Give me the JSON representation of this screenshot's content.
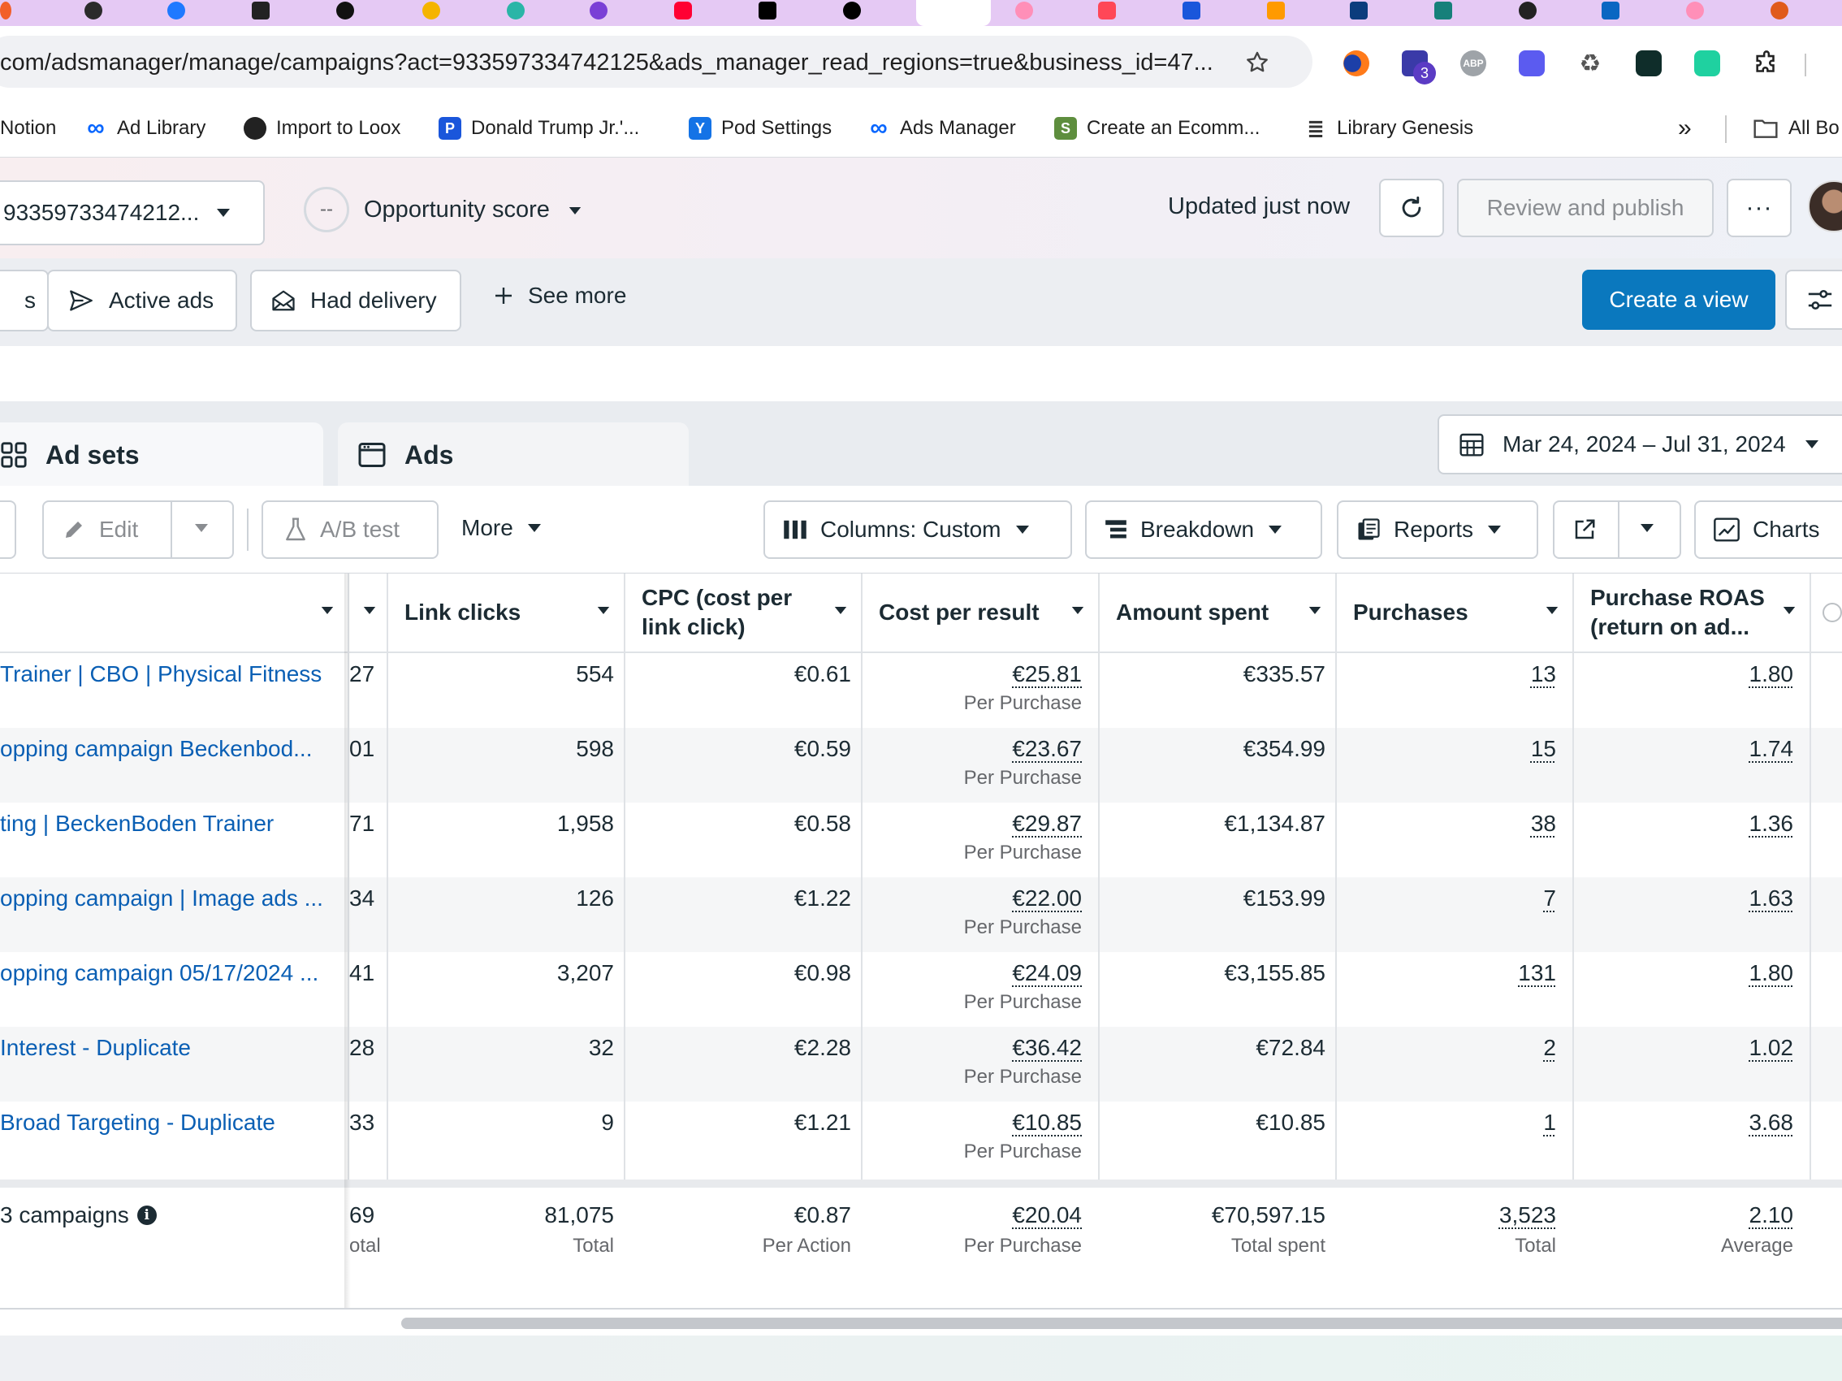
{
  "browser": {
    "url": "com/adsmanager/manage/campaigns?act=933597334742125&ads_manager_read_regions=true&business_id=47...",
    "bookmarks": [
      {
        "label": "Notion"
      },
      {
        "label": "Ad Library"
      },
      {
        "label": "Import to Loox"
      },
      {
        "label": "Donald Trump Jr.'..."
      },
      {
        "label": "Pod Settings"
      },
      {
        "label": "Ads Manager"
      },
      {
        "label": "Create an Ecomm..."
      },
      {
        "label": "Library Genesis"
      }
    ],
    "overflow_label": "»",
    "all_bookmarks_label": "All Bo",
    "extension_badge": "3",
    "abp_label": "ABP"
  },
  "header": {
    "account_id": "93359733474212...",
    "opportunity_score_value": "--",
    "opportunity_score_label": "Opportunity score",
    "updated_text": "Updated just now",
    "publish_label": "Review and publish",
    "more_label": "···"
  },
  "filters": {
    "partial_label": "s",
    "active_ads_label": "Active ads",
    "had_delivery_label": "Had delivery",
    "see_more_label": "See more",
    "create_view_label": "Create a view"
  },
  "level_tabs": {
    "adsets_label": "Ad sets",
    "ads_label": "Ads"
  },
  "date_range": "Mar 24, 2024 – Jul 31, 2024",
  "toolbar": {
    "edit_label": "Edit",
    "ab_test_label": "A/B test",
    "more_label": "More",
    "columns_label": "Columns: Custom",
    "breakdown_label": "Breakdown",
    "reports_label": "Reports",
    "charts_label": "Charts"
  },
  "table": {
    "headers": {
      "link_clicks": "Link clicks",
      "cpc_line1": "CPC (cost per",
      "cpc_line2": "link click)",
      "cost_per_result": "Cost per result",
      "amount_spent": "Amount spent",
      "purchases": "Purchases",
      "roas_line1": "Purchase ROAS",
      "roas_line2": "(return on ad..."
    },
    "rows": [
      {
        "name": "Trainer | CBO | Physical Fitness",
        "partial": "27",
        "link_clicks": "554",
        "cpc": "€0.61",
        "cost_per_result": "€25.81",
        "result_type": "Per Purchase",
        "amount_spent": "€335.57",
        "purchases": "13",
        "roas": "1.80"
      },
      {
        "name": "opping campaign Beckenbod...",
        "partial": "01",
        "link_clicks": "598",
        "cpc": "€0.59",
        "cost_per_result": "€23.67",
        "result_type": "Per Purchase",
        "amount_spent": "€354.99",
        "purchases": "15",
        "roas": "1.74"
      },
      {
        "name": "ting | BeckenBoden Trainer",
        "partial": "71",
        "link_clicks": "1,958",
        "cpc": "€0.58",
        "cost_per_result": "€29.87",
        "result_type": "Per Purchase",
        "amount_spent": "€1,134.87",
        "purchases": "38",
        "roas": "1.36"
      },
      {
        "name": "opping campaign | Image ads ...",
        "partial": "34",
        "link_clicks": "126",
        "cpc": "€1.22",
        "cost_per_result": "€22.00",
        "result_type": "Per Purchase",
        "amount_spent": "€153.99",
        "purchases": "7",
        "roas": "1.63"
      },
      {
        "name": "opping campaign 05/17/2024 ...",
        "partial": "41",
        "link_clicks": "3,207",
        "cpc": "€0.98",
        "cost_per_result": "€24.09",
        "result_type": "Per Purchase",
        "amount_spent": "€3,155.85",
        "purchases": "131",
        "roas": "1.80"
      },
      {
        "name": "Interest - Duplicate",
        "partial": "28",
        "link_clicks": "32",
        "cpc": "€2.28",
        "cost_per_result": "€36.42",
        "result_type": "Per Purchase",
        "amount_spent": "€72.84",
        "purchases": "2",
        "roas": "1.02"
      },
      {
        "name": "Broad Targeting - Duplicate",
        "partial": "33",
        "link_clicks": "9",
        "cpc": "€1.21",
        "cost_per_result": "€10.85",
        "result_type": "Per Purchase",
        "amount_spent": "€10.85",
        "purchases": "1",
        "roas": "3.68"
      }
    ],
    "totals": {
      "label": "3 campaigns",
      "partial": "69",
      "partial_sub": "otal",
      "link_clicks": "81,075",
      "link_clicks_sub": "Total",
      "cpc": "€0.87",
      "cpc_sub": "Per Action",
      "cost_per_result": "€20.04",
      "cost_per_result_sub": "Per Purchase",
      "amount_spent": "€70,597.15",
      "amount_spent_sub": "Total spent",
      "purchases": "3,523",
      "purchases_sub": "Total",
      "roas": "2.10",
      "roas_sub": "Average"
    }
  },
  "colors": {
    "accent_blue": "#0a78be",
    "link_blue": "#0a5fb4",
    "tab_strip": "#e5c9f4"
  }
}
